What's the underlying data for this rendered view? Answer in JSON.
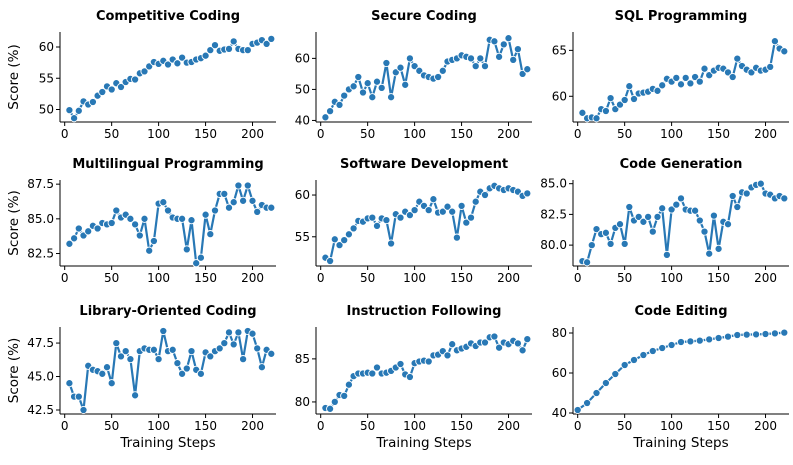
{
  "colors": {
    "series": "#2878b5"
  },
  "chart_data": [
    {
      "type": "line",
      "title": "Competitive Coding",
      "xlabel": "",
      "ylabel": "Score (%)",
      "xlim": [
        -5,
        225
      ],
      "ylim": [
        48,
        62.4
      ],
      "xticks": [
        0,
        50,
        100,
        150,
        200
      ],
      "yticks": [
        50,
        55,
        60
      ],
      "x": [
        5,
        10,
        15,
        20,
        25,
        30,
        35,
        40,
        45,
        50,
        55,
        60,
        65,
        70,
        75,
        80,
        85,
        90,
        95,
        100,
        105,
        110,
        115,
        120,
        125,
        130,
        135,
        140,
        145,
        150,
        155,
        160,
        165,
        170,
        175,
        180,
        185,
        190,
        195,
        200,
        205,
        210,
        215,
        220
      ],
      "values": [
        49.9,
        48.6,
        49.8,
        51.3,
        50.8,
        51.2,
        52.2,
        52.8,
        53.7,
        53.2,
        54.2,
        53.6,
        54.4,
        54.9,
        54.8,
        55.8,
        56.1,
        56.9,
        57.6,
        57.3,
        57.8,
        57.2,
        58.0,
        57.4,
        58.3,
        57.5,
        57.6,
        58.0,
        58.2,
        58.6,
        59.5,
        60.3,
        59.4,
        59.6,
        59.7,
        60.9,
        59.7,
        59.5,
        59.5,
        60.5,
        60.7,
        61.1,
        60.5,
        61.3
      ]
    },
    {
      "type": "line",
      "title": "Secure Coding",
      "xlabel": "",
      "ylabel": "",
      "xlim": [
        -5,
        225
      ],
      "ylim": [
        39.5,
        68.5
      ],
      "xticks": [
        0,
        50,
        100,
        150,
        200
      ],
      "yticks": [
        40,
        50,
        60
      ],
      "x": [
        5,
        10,
        15,
        20,
        25,
        30,
        35,
        40,
        45,
        50,
        55,
        60,
        65,
        70,
        75,
        80,
        85,
        90,
        95,
        100,
        105,
        110,
        115,
        120,
        125,
        130,
        135,
        140,
        145,
        150,
        155,
        160,
        165,
        170,
        175,
        180,
        185,
        190,
        195,
        200,
        205,
        210,
        215,
        220
      ],
      "values": [
        41,
        43,
        46,
        45,
        48,
        50,
        51,
        54,
        49,
        52,
        47.5,
        52.5,
        50.5,
        58.5,
        47.5,
        55.5,
        57,
        51.5,
        60,
        57.5,
        56,
        54.5,
        54,
        53.5,
        54,
        56,
        59,
        59.5,
        60,
        61,
        60.5,
        60,
        57.5,
        60,
        57.5,
        66,
        65.5,
        60.5,
        64.5,
        66.5,
        59.5,
        63,
        55,
        56.5
      ]
    },
    {
      "type": "line",
      "title": "SQL Programming",
      "xlabel": "",
      "ylabel": "",
      "xlim": [
        -5,
        225
      ],
      "ylim": [
        57.2,
        67.0
      ],
      "xticks": [
        0,
        50,
        100,
        150,
        200
      ],
      "yticks": [
        60,
        65
      ],
      "x": [
        5,
        10,
        15,
        20,
        25,
        30,
        35,
        40,
        45,
        50,
        55,
        60,
        65,
        70,
        75,
        80,
        85,
        90,
        95,
        100,
        105,
        110,
        115,
        120,
        125,
        130,
        135,
        140,
        145,
        150,
        155,
        160,
        165,
        170,
        175,
        180,
        185,
        190,
        195,
        200,
        205,
        210,
        215,
        220
      ],
      "values": [
        58.2,
        57.6,
        57.7,
        57.6,
        58.6,
        58.4,
        59.8,
        58.6,
        59.1,
        59.6,
        61.1,
        59.7,
        60.3,
        60.4,
        60.5,
        60.8,
        60.6,
        61.2,
        61.9,
        61.6,
        62.0,
        61.3,
        62.0,
        61.4,
        62.1,
        61.6,
        63.0,
        62.3,
        62.8,
        63.1,
        63.0,
        62.6,
        62.1,
        64.1,
        63.3,
        62.9,
        62.6,
        63.1,
        62.8,
        62.9,
        63.2,
        66.0,
        65.2,
        64.9
      ]
    },
    {
      "type": "line",
      "title": "Multilingual Programming",
      "xlabel": "",
      "ylabel": "Score (%)",
      "xlim": [
        -5,
        225
      ],
      "ylim": [
        81.6,
        87.8
      ],
      "xticks": [
        0,
        50,
        100,
        150,
        200
      ],
      "yticks": [
        82.5,
        85.0,
        87.5
      ],
      "x": [
        5,
        10,
        15,
        20,
        25,
        30,
        35,
        40,
        45,
        50,
        55,
        60,
        65,
        70,
        75,
        80,
        85,
        90,
        95,
        100,
        105,
        110,
        115,
        120,
        125,
        130,
        135,
        140,
        145,
        150,
        155,
        160,
        165,
        170,
        175,
        180,
        185,
        190,
        195,
        200,
        205,
        210,
        215,
        220
      ],
      "values": [
        83.2,
        83.6,
        84.3,
        83.8,
        84.1,
        84.5,
        84.3,
        84.7,
        84.6,
        84.7,
        85.6,
        85.1,
        85.3,
        85.0,
        84.6,
        83.8,
        85.0,
        82.7,
        83.4,
        86.1,
        86.2,
        85.6,
        85.1,
        85.0,
        85.0,
        82.8,
        84.9,
        81.8,
        82.2,
        85.3,
        83.9,
        85.6,
        86.8,
        86.8,
        85.8,
        86.2,
        87.4,
        86.3,
        87.4,
        86.3,
        85.5,
        86.0,
        85.8,
        85.8
      ]
    },
    {
      "type": "line",
      "title": "Software Development",
      "xlabel": "",
      "ylabel": "",
      "xlim": [
        -5,
        225
      ],
      "ylim": [
        51.5,
        61.8
      ],
      "xticks": [
        0,
        50,
        100,
        150,
        200
      ],
      "yticks": [
        55,
        60
      ],
      "x": [
        5,
        10,
        15,
        20,
        25,
        30,
        35,
        40,
        45,
        50,
        55,
        60,
        65,
        70,
        75,
        80,
        85,
        90,
        95,
        100,
        105,
        110,
        115,
        120,
        125,
        130,
        135,
        140,
        145,
        150,
        155,
        160,
        165,
        170,
        175,
        180,
        185,
        190,
        195,
        200,
        205,
        210,
        215,
        220
      ],
      "values": [
        52.5,
        52.1,
        54.7,
        54.0,
        54.6,
        55.3,
        56.0,
        56.9,
        56.8,
        57.2,
        57.3,
        56.3,
        57.2,
        57.0,
        54.2,
        57.7,
        57.3,
        58.0,
        57.6,
        58.2,
        59.2,
        58.7,
        58.2,
        59.5,
        57.9,
        58.0,
        58.6,
        58.0,
        54.9,
        58.7,
        56.7,
        57.3,
        59.2,
        60.4,
        60.0,
        60.8,
        61.1,
        60.8,
        60.6,
        60.8,
        60.6,
        60.4,
        59.9,
        60.2
      ]
    },
    {
      "type": "line",
      "title": "Code Generation",
      "xlabel": "",
      "ylabel": "",
      "xlim": [
        -5,
        225
      ],
      "ylim": [
        78.3,
        85.3
      ],
      "xticks": [
        0,
        50,
        100,
        150,
        200
      ],
      "yticks": [
        80.0,
        82.5,
        85.0
      ],
      "x": [
        5,
        10,
        15,
        20,
        25,
        30,
        35,
        40,
        45,
        50,
        55,
        60,
        65,
        70,
        75,
        80,
        85,
        90,
        95,
        100,
        105,
        110,
        115,
        120,
        125,
        130,
        135,
        140,
        145,
        150,
        155,
        160,
        165,
        170,
        175,
        180,
        185,
        190,
        195,
        200,
        205,
        210,
        215,
        220
      ],
      "values": [
        78.7,
        78.6,
        80.0,
        81.3,
        80.9,
        81.0,
        80.1,
        81.4,
        81.7,
        80.1,
        83.1,
        82.0,
        82.3,
        81.9,
        82.3,
        81.1,
        82.3,
        83.0,
        79.2,
        82.9,
        83.3,
        83.8,
        82.9,
        82.8,
        82.8,
        82.0,
        81.1,
        79.3,
        82.4,
        79.7,
        81.9,
        81.7,
        84.0,
        83.1,
        84.3,
        84.2,
        84.7,
        84.9,
        85.0,
        84.2,
        84.1,
        83.8,
        84.0,
        83.8
      ]
    },
    {
      "type": "line",
      "title": "Library-Oriented Coding",
      "xlabel": "Training Steps",
      "ylabel": "Score (%)",
      "xlim": [
        -5,
        225
      ],
      "ylim": [
        42.2,
        48.7
      ],
      "xticks": [
        0,
        50,
        100,
        150,
        200
      ],
      "yticks": [
        42.5,
        45.0,
        47.5
      ],
      "x": [
        5,
        10,
        15,
        20,
        25,
        30,
        35,
        40,
        45,
        50,
        55,
        60,
        65,
        70,
        75,
        80,
        85,
        90,
        95,
        100,
        105,
        110,
        115,
        120,
        125,
        130,
        135,
        140,
        145,
        150,
        155,
        160,
        165,
        170,
        175,
        180,
        185,
        190,
        195,
        200,
        205,
        210,
        215,
        220
      ],
      "values": [
        44.5,
        43.5,
        43.5,
        42.5,
        45.8,
        45.5,
        45.4,
        45.2,
        45.7,
        44.5,
        47.5,
        46.5,
        46.9,
        46.3,
        43.6,
        46.9,
        47.1,
        47.0,
        47.0,
        46.3,
        48.4,
        46.9,
        47.0,
        46.0,
        45.2,
        45.6,
        46.9,
        45.5,
        45.2,
        46.8,
        46.5,
        46.9,
        47.1,
        47.5,
        48.3,
        47.4,
        48.3,
        46.3,
        48.4,
        48.2,
        47.1,
        45.7,
        47.0,
        46.7
      ]
    },
    {
      "type": "line",
      "title": "Instruction Following",
      "xlabel": "Training Steps",
      "ylabel": "",
      "xlim": [
        -5,
        225
      ],
      "ylim": [
        78.6,
        88.7
      ],
      "xticks": [
        0,
        50,
        100,
        150,
        200
      ],
      "yticks": [
        80,
        85
      ],
      "x": [
        5,
        10,
        15,
        20,
        25,
        30,
        35,
        40,
        45,
        50,
        55,
        60,
        65,
        70,
        75,
        80,
        85,
        90,
        95,
        100,
        105,
        110,
        115,
        120,
        125,
        130,
        135,
        140,
        145,
        150,
        155,
        160,
        165,
        170,
        175,
        180,
        185,
        190,
        195,
        200,
        205,
        210,
        215,
        220
      ],
      "values": [
        79.3,
        79.2,
        80.0,
        80.8,
        80.7,
        82.0,
        83.0,
        83.3,
        83.3,
        83.4,
        83.3,
        84.0,
        83.3,
        83.4,
        83.6,
        84.0,
        84.4,
        83.2,
        82.9,
        84.5,
        84.7,
        84.8,
        84.7,
        85.4,
        85.5,
        85.9,
        85.4,
        86.7,
        86.0,
        86.2,
        86.4,
        86.8,
        86.5,
        86.9,
        86.9,
        87.5,
        87.6,
        86.3,
        86.9,
        86.7,
        87.1,
        86.8,
        86.0,
        87.3
      ]
    },
    {
      "type": "line",
      "title": "Code Editing",
      "xlabel": "Training Steps",
      "ylabel": "",
      "xlim": [
        -5,
        225
      ],
      "ylim": [
        39.5,
        83.0
      ],
      "xticks": [
        0,
        50,
        100,
        150,
        200
      ],
      "yticks": [
        40,
        60,
        80
      ],
      "x": [
        0,
        10,
        20,
        30,
        40,
        50,
        60,
        70,
        80,
        90,
        100,
        110,
        120,
        130,
        140,
        150,
        160,
        170,
        180,
        190,
        200,
        210,
        220
      ],
      "values": [
        41.5,
        45,
        50,
        55,
        59.5,
        64,
        66.5,
        69,
        71,
        72.5,
        74,
        75.5,
        75.8,
        76.2,
        76.8,
        77.5,
        78.2,
        79,
        79.2,
        79.3,
        79.5,
        79.8,
        80.2
      ]
    }
  ]
}
